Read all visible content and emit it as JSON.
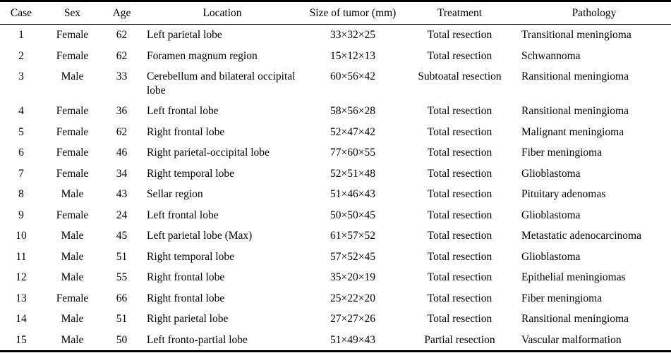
{
  "table": {
    "columns": [
      {
        "label": "Case",
        "align": "center"
      },
      {
        "label": "Sex",
        "align": "center"
      },
      {
        "label": "Age",
        "align": "center"
      },
      {
        "label": "Location",
        "align": "left"
      },
      {
        "label": "Size of tumor (mm)",
        "align": "center"
      },
      {
        "label": "Treatment",
        "align": "center"
      },
      {
        "label": "Pathology",
        "align": "left"
      }
    ],
    "rows": [
      [
        "1",
        "Female",
        "62",
        "Left parietal lobe",
        "33×32×25",
        "Total resection",
        "Transitional meningioma"
      ],
      [
        "2",
        "Female",
        "62",
        "Foramen magnum region",
        "15×12×13",
        "Total resection",
        "Schwannoma"
      ],
      [
        "3",
        "Male",
        "33",
        "Cerebellum and bilateral occipital lobe",
        "60×56×42",
        "Subtoatal resection",
        "Ransitional meningioma"
      ],
      [
        "4",
        "Female",
        "36",
        "Left frontal lobe",
        "58×56×28",
        "Total resection",
        "Ransitional meningioma"
      ],
      [
        "5",
        "Female",
        "62",
        "Right frontal lobe",
        "52×47×42",
        "Total resection",
        "Malignant meningioma"
      ],
      [
        "6",
        "Female",
        "46",
        "Right parietal-occipital lobe",
        "77×60×55",
        "Total resection",
        "Fiber meningioma"
      ],
      [
        "7",
        "Female",
        "34",
        "Right temporal lobe",
        "52×51×48",
        "Total resection",
        "Glioblastoma"
      ],
      [
        "8",
        "Male",
        "43",
        "Sellar region",
        "51×46×43",
        "Total resection",
        "Pituitary adenomas"
      ],
      [
        "9",
        "Female",
        "24",
        "Left frontal lobe",
        "50×50×45",
        "Total resection",
        "Glioblastoma"
      ],
      [
        "10",
        "Male",
        "45",
        "Left parietal lobe (Max)",
        "61×57×52",
        "Total resection",
        "Metastatic adenocarcinoma"
      ],
      [
        "11",
        "Male",
        "51",
        "Right temporal lobe",
        "57×52×45",
        "Total resection",
        "Glioblastoma"
      ],
      [
        "12",
        "Male",
        "55",
        "Right frontal lobe",
        "35×20×19",
        "Total resection",
        "Epithelial meningiomas"
      ],
      [
        "13",
        "Female",
        "66",
        "Right frontal lobe",
        "25×22×20",
        "Total resection",
        "Fiber meningioma"
      ],
      [
        "14",
        "Male",
        "51",
        "Right parietal lobe",
        "27×27×26",
        "Total resection",
        "Ransitional meningioma"
      ],
      [
        "15",
        "Male",
        "50",
        "Left fronto-partial lobe",
        "51×49×43",
        "Partial resection",
        "Vascular malformation"
      ]
    ]
  },
  "colors": {
    "text": "#000000",
    "border": "#000000",
    "background": "#ffffff"
  }
}
